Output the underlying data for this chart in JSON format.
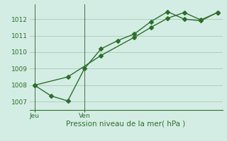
{
  "line1_x": [
    0,
    1,
    2,
    3,
    4,
    5,
    6,
    7,
    8,
    9,
    10,
    11
  ],
  "line1_y": [
    1008.0,
    1007.35,
    1007.05,
    1009.0,
    1010.2,
    1010.7,
    1011.1,
    1011.85,
    1012.45,
    1012.0,
    1011.9,
    1012.4
  ],
  "line2_x": [
    0,
    2,
    4,
    6,
    7,
    8,
    9,
    10,
    11
  ],
  "line2_y": [
    1008.0,
    1008.5,
    1009.8,
    1010.9,
    1011.5,
    1012.05,
    1012.4,
    1011.95,
    1012.4
  ],
  "vline1_x": 0,
  "vline2_x": 3,
  "vline1_label": "Jeu",
  "vline2_label": "Ven",
  "xlabel": "Pression niveau de la mer( hPa )",
  "ylim": [
    1006.5,
    1012.9
  ],
  "yticks": [
    1007,
    1008,
    1009,
    1010,
    1011,
    1012
  ],
  "xlim": [
    -0.3,
    11.3
  ],
  "bg_color": "#d4ede4",
  "line_color": "#2d6e2d",
  "grid_color": "#a8c8b8",
  "vline_color": "#4a6a4a",
  "tick_label_color": "#2d6e2d",
  "xlabel_color": "#2d6e2d",
  "marker": "D",
  "markersize": 3,
  "linewidth": 1.0,
  "tick_fontsize": 6.5,
  "xlabel_fontsize": 7.5
}
